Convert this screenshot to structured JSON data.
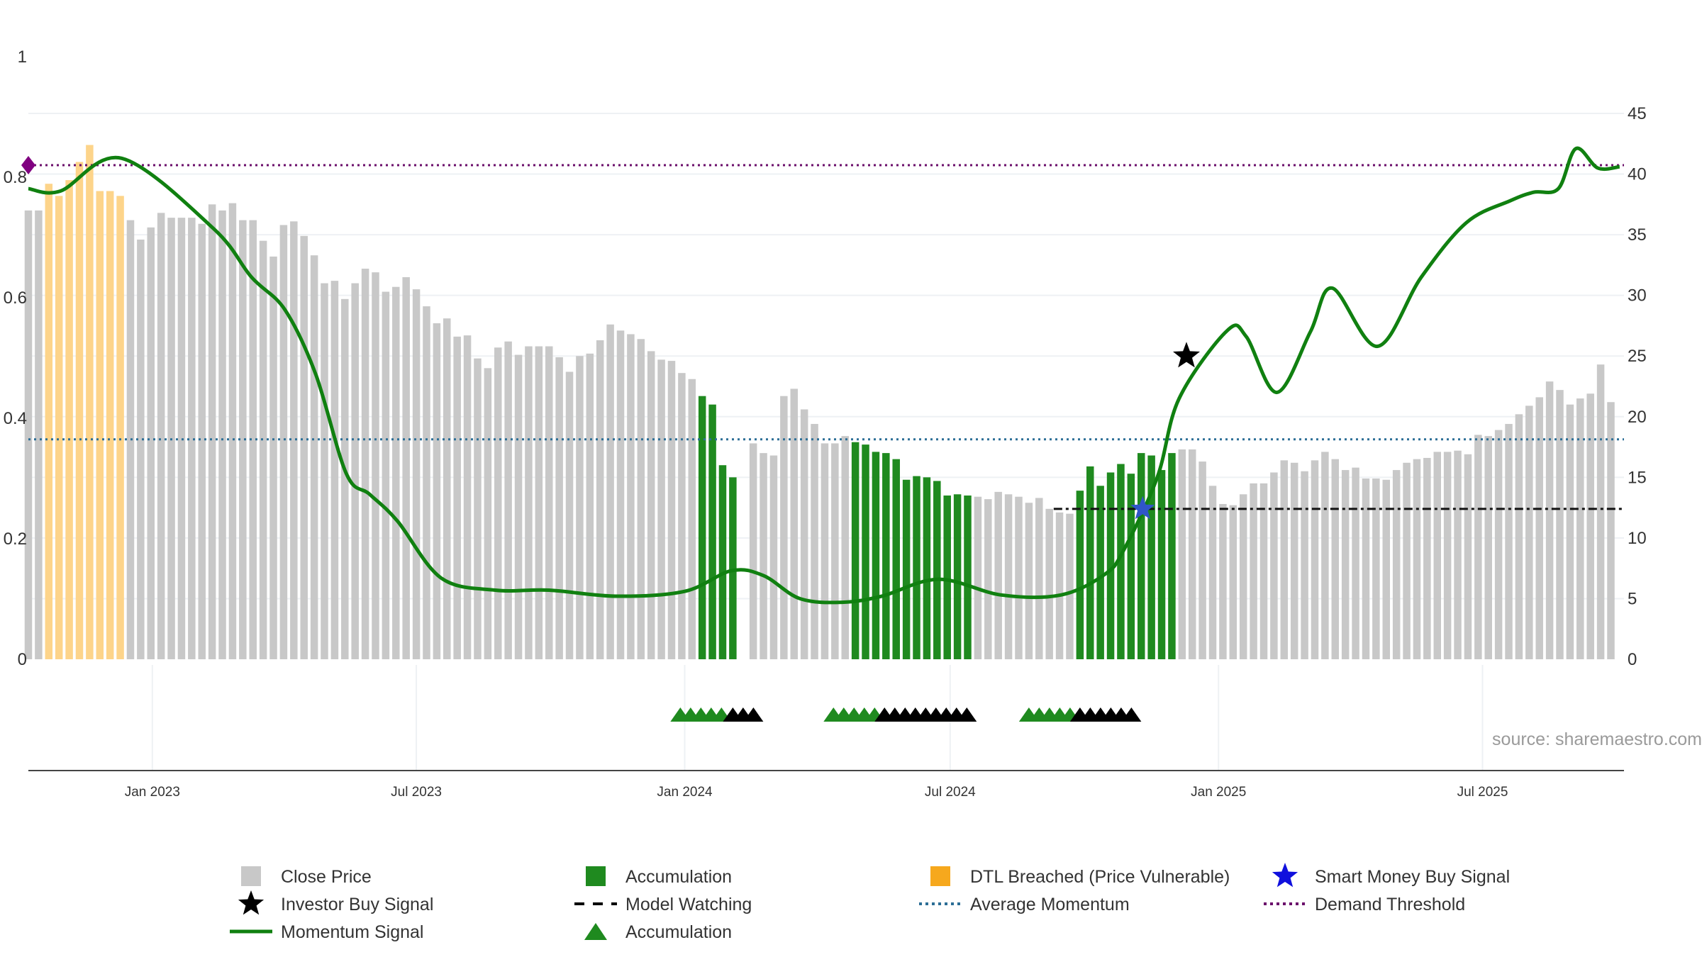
{
  "chart_data": {
    "type": "bar",
    "source": "source: sharemaestro.com",
    "left_axis": {
      "ticks": [
        1,
        0.8,
        0.6,
        0.4,
        0.2,
        0
      ],
      "ylim": [
        0,
        1
      ]
    },
    "right_axis": {
      "ticks": [
        45,
        40,
        35,
        30,
        25,
        20,
        15,
        10,
        5,
        0
      ],
      "ylim": [
        0,
        45
      ]
    },
    "x_axis": {
      "ticks": [
        "Jan 2023",
        "Jul 2023",
        "Jan 2024",
        "Jul 2024",
        "Jan 2025",
        "Jul 2025"
      ],
      "range": [
        "2022-10-08",
        "2025-10-06"
      ]
    },
    "grid": true,
    "legend_placement": "bottom",
    "colors": {
      "close": "#c8c8c8",
      "accumulation": "#1f8a1f",
      "dtl": "#fdd48a",
      "momentum": "#108010",
      "average_momentum": "#2c6e96",
      "demand_threshold": "#6b0f6b",
      "smart_money": "#1010dd",
      "investor": "#000000"
    },
    "bar_start": "2022-10-08",
    "bar_step_days": 7,
    "close_price": [
      37.0,
      37.0,
      39.2,
      38.2,
      39.5,
      41.0,
      42.4,
      38.6,
      38.6,
      38.2,
      36.2,
      34.6,
      35.6,
      36.8,
      36.4,
      36.4,
      36.4,
      35.9,
      37.5,
      37.0,
      37.6,
      36.2,
      36.2,
      34.5,
      33.2,
      35.8,
      36.1,
      34.9,
      33.3,
      31.0,
      31.2,
      29.7,
      31.0,
      32.2,
      31.9,
      30.3,
      30.7,
      31.5,
      30.5,
      29.1,
      27.7,
      28.1,
      26.6,
      26.7,
      24.8,
      24.0,
      25.7,
      26.2,
      25.1,
      25.8,
      25.8,
      25.8,
      24.9,
      23.7,
      25.0,
      25.2,
      26.3,
      27.6,
      27.1,
      26.8,
      26.4,
      25.4,
      24.7,
      24.6,
      23.6,
      23.1,
      21.7,
      21.0,
      16.0,
      15.0,
      0,
      17.8,
      17.0,
      16.8,
      21.7,
      22.3,
      20.6,
      19.4,
      17.8,
      17.8,
      18.4,
      17.9,
      17.7,
      17.1,
      17.0,
      16.5,
      14.8,
      15.1,
      15.0,
      14.7,
      13.5,
      13.6,
      13.5,
      13.4,
      13.2,
      13.8,
      13.6,
      13.4,
      12.9,
      13.3,
      12.4,
      12.1,
      12.0,
      13.9,
      15.9,
      14.3,
      15.4,
      16.1,
      15.3,
      17.0,
      16.8,
      15.6,
      17.0,
      17.3,
      17.3,
      16.3,
      14.3,
      12.8,
      12.7,
      13.6,
      14.5,
      14.5,
      15.4,
      16.4,
      16.2,
      15.5,
      16.4,
      17.1,
      16.5,
      15.6,
      15.8,
      14.9,
      14.9,
      14.8,
      15.6,
      16.2,
      16.5,
      16.6,
      17.1,
      17.1,
      17.2,
      16.9,
      18.5,
      18.4,
      18.9,
      19.4,
      20.2,
      20.9,
      21.6,
      22.9,
      22.2,
      21.0,
      21.5,
      21.9,
      24.3,
      21.2
    ],
    "accumulation_bar_ranges": [
      [
        66,
        69
      ],
      [
        81,
        92
      ],
      [
        103,
        112
      ]
    ],
    "dtl_bar_range": [
      2,
      9
    ],
    "momentum_signal": [
      [
        "2022-10-08",
        38.8
      ],
      [
        "2022-10-30",
        38.6
      ],
      [
        "2022-12-11",
        41.3
      ],
      [
        "2023-02-12",
        35.5
      ],
      [
        "2023-03-10",
        31.5
      ],
      [
        "2023-04-02",
        28.8
      ],
      [
        "2023-04-23",
        23.5
      ],
      [
        "2023-05-14",
        15.3
      ],
      [
        "2023-05-30",
        13.6
      ],
      [
        "2023-06-18",
        11.4
      ],
      [
        "2023-07-18",
        6.7
      ],
      [
        "2023-08-24",
        5.7
      ],
      [
        "2023-09-30",
        5.7
      ],
      [
        "2023-11-15",
        5.2
      ],
      [
        "2024-01-01",
        5.6
      ],
      [
        "2024-02-02",
        7.3
      ],
      [
        "2024-02-24",
        6.9
      ],
      [
        "2024-03-20",
        5.0
      ],
      [
        "2024-04-18",
        4.7
      ],
      [
        "2024-05-15",
        5.2
      ],
      [
        "2024-06-23",
        6.6
      ],
      [
        "2024-08-05",
        5.3
      ],
      [
        "2024-09-15",
        5.3
      ],
      [
        "2024-10-15",
        7.0
      ],
      [
        "2024-10-28",
        9.0
      ],
      [
        "2024-11-20",
        15.0
      ],
      [
        "2024-12-05",
        21.5
      ],
      [
        "2025-01-07",
        27.1
      ],
      [
        "2025-01-20",
        26.6
      ],
      [
        "2025-02-10",
        22.0
      ],
      [
        "2025-03-05",
        27.0
      ],
      [
        "2025-03-20",
        30.6
      ],
      [
        "2025-04-20",
        25.8
      ],
      [
        "2025-05-20",
        31.5
      ],
      [
        "2025-06-20",
        36.0
      ],
      [
        "2025-07-20",
        37.8
      ],
      [
        "2025-08-05",
        38.5
      ],
      [
        "2025-08-22",
        38.8
      ],
      [
        "2025-09-03",
        42.1
      ],
      [
        "2025-09-18",
        40.5
      ],
      [
        "2025-10-03",
        40.6
      ]
    ],
    "average_momentum": 0.365,
    "demand_threshold": 0.82,
    "model_watching": {
      "level": 12.4,
      "start": "2024-09-10",
      "end": "2025-10-05"
    },
    "investor_buy_signal": {
      "date": "2024-12-10",
      "value": 25.0
    },
    "smart_money_buy_signal": {
      "date": "2024-11-10",
      "value": 12.4
    },
    "accumulation_triangles": [
      {
        "color": "green",
        "count": 5,
        "start": "2023-12-29"
      },
      {
        "color": "black",
        "count": 3,
        "start": "2024-02-03"
      },
      {
        "color": "green",
        "count": 5,
        "start": "2024-04-12"
      },
      {
        "color": "black",
        "count": 9,
        "start": "2024-05-17"
      },
      {
        "color": "green",
        "count": 5,
        "start": "2024-08-24"
      },
      {
        "color": "black",
        "count": 6,
        "start": "2024-09-28"
      }
    ],
    "legend": [
      {
        "label": "Close Price",
        "symbol": "square",
        "color": "#c8c8c8"
      },
      {
        "label": "Accumulation",
        "symbol": "square",
        "color": "#1f8a1f"
      },
      {
        "label": "DTL Breached (Price Vulnerable)",
        "symbol": "square",
        "color": "#f6a81d"
      },
      {
        "label": "Smart Money Buy Signal",
        "symbol": "star",
        "color": "#1010dd"
      },
      {
        "label": "Investor Buy Signal",
        "symbol": "star",
        "color": "#000000"
      },
      {
        "label": "Model Watching",
        "symbol": "dash",
        "color": "#000000"
      },
      {
        "label": "Average Momentum",
        "symbol": "dot",
        "color": "#2c6e96"
      },
      {
        "label": "Demand Threshold",
        "symbol": "dot",
        "color": "#6b0f6b"
      },
      {
        "label": "Momentum Signal",
        "symbol": "line",
        "color": "#108010"
      },
      {
        "label": "Accumulation",
        "symbol": "triangle",
        "color": "#1f8a1f"
      }
    ]
  }
}
